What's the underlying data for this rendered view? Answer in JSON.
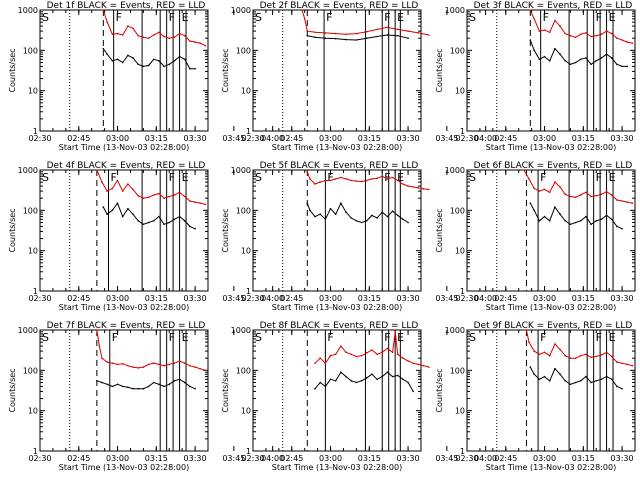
{
  "figure": {
    "common": {
      "xlabel": "Start Time (13-Nov-03 02:28:00)",
      "ylabel": "Counts/sec",
      "x_range_min": [
        150,
        215
      ],
      "y_range": [
        1,
        1000
      ],
      "x_tick_minutes": [
        150,
        165,
        180,
        195,
        210,
        225,
        240
      ],
      "x_tick_labels": [
        "02:30",
        "02:45",
        "03:00",
        "03:15",
        "03:30",
        "03:45",
        "04:00"
      ],
      "y_ticks": [
        1,
        10,
        100,
        1000
      ],
      "y_tick_labels": [
        "1",
        "10",
        "100",
        "1000"
      ],
      "marker_labels": {
        "start": "S",
        "flare": "F",
        "end": "E"
      },
      "colors": {
        "events": "#000000",
        "lld": "#dd0000",
        "axes": "#000000"
      }
    }
  },
  "chart_data": [
    {
      "type": "line",
      "title": "Det 1f BLACK = Events, RED = LLD",
      "xlabel": "Start Time (13-Nov-03 02:28:00)",
      "ylabel": "Counts/sec",
      "ylim": [
        1,
        1000
      ],
      "yscale": "log",
      "vlines": {
        "dotted": [
          161.5
        ],
        "dashed": [
          174.5
        ],
        "solid": [
          178.5,
          189.5,
          196.5,
          199,
          201.5,
          204,
          206.5
        ]
      },
      "series": [
        {
          "name": "Events",
          "x": [
            174.5,
            176,
            178,
            180,
            182,
            184,
            186,
            188,
            190,
            192,
            194,
            196,
            198,
            200,
            202,
            204,
            206,
            208,
            210
          ],
          "values": [
            110,
            80,
            55,
            60,
            50,
            75,
            65,
            45,
            40,
            42,
            60,
            55,
            40,
            45,
            55,
            70,
            60,
            35,
            35
          ]
        },
        {
          "name": "LLD",
          "x": [
            174.5,
            176,
            178,
            180,
            182,
            184,
            186,
            188,
            190,
            192,
            194,
            196,
            198,
            200,
            202,
            204,
            206,
            208,
            210,
            212,
            214
          ],
          "values": [
            1000,
            500,
            250,
            260,
            240,
            400,
            350,
            230,
            210,
            200,
            240,
            280,
            220,
            200,
            210,
            260,
            230,
            170,
            160,
            150,
            130
          ]
        }
      ]
    },
    {
      "type": "line",
      "title": "Det 2f BLACK = Events, RED = LLD",
      "xlabel": "Start Time (13-Nov-03 02:28:00)",
      "ylabel": "Counts/sec",
      "ylim": [
        1,
        1000
      ],
      "yscale": "log",
      "vlines": {
        "dotted": [
          161.5
        ],
        "dashed": [
          171
        ],
        "solid": [
          177.5,
          193.5,
          200,
          202.5,
          205,
          207
        ]
      },
      "series": [
        {
          "name": "Events",
          "x": [
            171,
            174,
            178,
            182,
            186,
            190,
            194,
            198,
            202,
            206,
            210
          ],
          "values": [
            230,
            210,
            200,
            195,
            185,
            180,
            200,
            220,
            240,
            230,
            200
          ]
        },
        {
          "name": "LLD",
          "x": [
            169,
            170,
            171,
            174,
            178,
            182,
            186,
            190,
            194,
            198,
            202,
            206,
            210,
            214,
            218
          ],
          "values": [
            1000,
            600,
            300,
            280,
            270,
            260,
            250,
            260,
            290,
            330,
            370,
            330,
            300,
            270,
            240
          ]
        }
      ]
    },
    {
      "type": "line",
      "title": "Det 3f BLACK = Events, RED = LLD",
      "xlabel": "Start Time (13-Nov-03 02:28:00)",
      "ylabel": "Counts/sec",
      "ylim": [
        1,
        1000
      ],
      "yscale": "log",
      "vlines": {
        "dotted": [
          161.5
        ],
        "dashed": [
          174.5
        ],
        "solid": [
          178.5,
          189.5,
          196.5,
          199,
          201.5,
          204,
          206.5
        ]
      },
      "series": [
        {
          "name": "Events",
          "x": [
            174.5,
            176,
            178,
            180,
            182,
            184,
            186,
            188,
            190,
            192,
            194,
            196,
            198,
            200,
            202,
            204,
            206,
            208,
            210,
            212
          ],
          "values": [
            180,
            100,
            60,
            70,
            55,
            110,
            80,
            55,
            45,
            50,
            60,
            65,
            45,
            55,
            65,
            80,
            65,
            45,
            40,
            40
          ]
        },
        {
          "name": "LLD",
          "x": [
            174.5,
            176,
            178,
            180,
            182,
            184,
            186,
            188,
            190,
            192,
            194,
            196,
            198,
            200,
            202,
            204,
            206,
            208,
            210,
            212,
            214
          ],
          "values": [
            1000,
            600,
            300,
            320,
            280,
            550,
            400,
            260,
            230,
            210,
            250,
            270,
            220,
            230,
            250,
            300,
            260,
            200,
            180,
            160,
            150
          ]
        }
      ]
    },
    {
      "type": "line",
      "title": "Det 4f BLACK = Events, RED = LLD",
      "xlabel": "Start Time (13-Nov-03 02:28:00)",
      "ylabel": "Counts/sec",
      "ylim": [
        1,
        1000
      ],
      "yscale": "log",
      "vlines": {
        "dotted": [
          161.5
        ],
        "dashed": [
          172
        ],
        "solid": [
          176.5,
          189.5,
          196.5,
          199,
          201.5,
          204,
          206.5
        ]
      },
      "series": [
        {
          "name": "Events",
          "x": [
            174.5,
            176,
            178,
            180,
            182,
            184,
            186,
            188,
            190,
            192,
            194,
            196,
            198,
            200,
            202,
            204,
            206,
            208,
            210
          ],
          "values": [
            120,
            80,
            100,
            150,
            70,
            110,
            80,
            55,
            45,
            50,
            55,
            70,
            45,
            50,
            60,
            70,
            55,
            40,
            35
          ]
        },
        {
          "name": "LLD",
          "x": [
            172,
            174,
            176,
            178,
            180,
            182,
            184,
            186,
            188,
            190,
            192,
            194,
            196,
            198,
            200,
            202,
            204,
            206,
            208,
            210,
            212,
            214
          ],
          "values": [
            1000,
            500,
            300,
            350,
            550,
            300,
            450,
            330,
            230,
            200,
            210,
            240,
            260,
            200,
            220,
            240,
            280,
            220,
            170,
            160,
            150,
            140
          ]
        }
      ]
    },
    {
      "type": "line",
      "title": "Det 5f BLACK = Events, RED = LLD",
      "xlabel": "Start Time (13-Nov-03 02:28:00)",
      "ylabel": "Counts/sec",
      "ylim": [
        1,
        1000
      ],
      "yscale": "log",
      "vlines": {
        "dotted": [
          161.5
        ],
        "dashed": [
          171
        ],
        "solid": [
          178,
          193.5,
          200,
          202.5,
          205,
          207
        ]
      },
      "series": [
        {
          "name": "Events",
          "x": [
            171,
            172,
            174,
            176,
            178,
            180,
            182,
            184,
            186,
            188,
            190,
            192,
            194,
            196,
            198,
            200,
            202,
            204,
            206,
            208,
            210
          ],
          "values": [
            150,
            100,
            70,
            80,
            60,
            110,
            80,
            150,
            90,
            65,
            55,
            50,
            55,
            75,
            65,
            90,
            70,
            95,
            75,
            60,
            50
          ]
        },
        {
          "name": "LLD",
          "x": [
            171,
            172,
            174,
            176,
            178,
            180,
            182,
            184,
            186,
            188,
            190,
            192,
            194,
            196,
            198,
            200,
            202,
            204,
            206,
            208,
            210,
            212,
            214,
            216,
            218
          ],
          "values": [
            900,
            600,
            450,
            500,
            550,
            550,
            600,
            650,
            600,
            550,
            530,
            520,
            550,
            600,
            620,
            700,
            600,
            650,
            550,
            450,
            400,
            380,
            360,
            340,
            330
          ]
        }
      ]
    },
    {
      "type": "line",
      "title": "Det 6f BLACK = Events, RED = LLD",
      "xlabel": "Start Time (13-Nov-03 02:28:00)",
      "ylabel": "Counts/sec",
      "ylim": [
        1,
        1000
      ],
      "yscale": "log",
      "vlines": {
        "dotted": [
          161.5
        ],
        "dashed": [
          173
        ],
        "solid": [
          177.5,
          189.5,
          196.5,
          199,
          201.5,
          204,
          206.5
        ]
      },
      "series": [
        {
          "name": "Events",
          "x": [
            174.5,
            176,
            178,
            180,
            182,
            184,
            186,
            188,
            190,
            192,
            194,
            196,
            198,
            200,
            202,
            204,
            206,
            208,
            210
          ],
          "values": [
            150,
            100,
            55,
            70,
            55,
            120,
            80,
            55,
            45,
            50,
            55,
            70,
            45,
            55,
            60,
            75,
            60,
            40,
            35
          ]
        },
        {
          "name": "LLD",
          "x": [
            172,
            174,
            176,
            178,
            180,
            182,
            184,
            186,
            188,
            190,
            192,
            194,
            196,
            198,
            200,
            202,
            204,
            206,
            208,
            210,
            212,
            214
          ],
          "values": [
            1000,
            600,
            350,
            300,
            330,
            280,
            500,
            380,
            250,
            220,
            210,
            240,
            280,
            220,
            230,
            250,
            290,
            240,
            180,
            170,
            160,
            150
          ]
        }
      ]
    },
    {
      "type": "line",
      "title": "Det 7f BLACK = Events, RED = LLD",
      "xlabel": "Start Time (13-Nov-03 02:28:00)",
      "ylabel": "Counts/sec",
      "ylim": [
        1,
        1000
      ],
      "yscale": "log",
      "vlines": {
        "dotted": [
          161.5
        ],
        "dashed": [
          172
        ],
        "solid": [
          177,
          196.5,
          199,
          201.5,
          204,
          206.5
        ]
      },
      "series": [
        {
          "name": "Events",
          "x": [
            172,
            174,
            176,
            178,
            180,
            182,
            184,
            186,
            188,
            190,
            192,
            194,
            196,
            198,
            200,
            202,
            204,
            206,
            208,
            210
          ],
          "values": [
            55,
            50,
            45,
            40,
            45,
            40,
            38,
            35,
            35,
            35,
            40,
            50,
            45,
            40,
            45,
            55,
            60,
            50,
            40,
            35
          ]
        },
        {
          "name": "LLD",
          "x": [
            172,
            173,
            174,
            176,
            178,
            180,
            182,
            184,
            186,
            188,
            190,
            192,
            194,
            196,
            198,
            200,
            202,
            204,
            206,
            208,
            210,
            212,
            214
          ],
          "values": [
            1000,
            400,
            200,
            160,
            150,
            140,
            145,
            130,
            120,
            115,
            120,
            140,
            150,
            140,
            130,
            140,
            150,
            170,
            150,
            130,
            120,
            110,
            100
          ]
        }
      ]
    },
    {
      "type": "line",
      "title": "Det 8f BLACK = Events, RED = LLD",
      "xlabel": "Start Time (13-Nov-03 02:28:00)",
      "ylabel": "Counts/sec",
      "ylim": [
        1,
        1000
      ],
      "yscale": "log",
      "vlines": {
        "dotted": [
          161.5
        ],
        "dashed": [
          171
        ],
        "solid": [
          178,
          193.5,
          200,
          202.5,
          205,
          207
        ]
      },
      "series": [
        {
          "name": "Events",
          "x": [
            174,
            176,
            178,
            180,
            182,
            184,
            186,
            188,
            190,
            192,
            194,
            196,
            198,
            200,
            202,
            204,
            206,
            208,
            210,
            212
          ],
          "values": [
            35,
            50,
            40,
            60,
            55,
            90,
            70,
            55,
            50,
            55,
            65,
            80,
            60,
            70,
            90,
            70,
            75,
            60,
            50,
            30
          ]
        },
        {
          "name": "LLD",
          "x": [
            174,
            176,
            178,
            180,
            182,
            184,
            186,
            188,
            190,
            192,
            194,
            196,
            198,
            200,
            202,
            204,
            205,
            206,
            208,
            210,
            212,
            214,
            216,
            218
          ],
          "values": [
            150,
            200,
            150,
            230,
            250,
            400,
            280,
            250,
            220,
            230,
            270,
            320,
            250,
            280,
            350,
            280,
            900,
            250,
            200,
            170,
            150,
            140,
            130,
            120
          ]
        }
      ]
    },
    {
      "type": "line",
      "title": "Det 9f BLACK = Events, RED = LLD",
      "xlabel": "Start Time (13-Nov-03 02:28:00)",
      "ylabel": "Counts/sec",
      "ylim": [
        1,
        1000
      ],
      "yscale": "log",
      "vlines": {
        "dotted": [
          161.5
        ],
        "dashed": [
          173
        ],
        "solid": [
          177.5,
          189.5,
          196.5,
          199,
          201.5,
          204,
          206.5
        ]
      },
      "series": [
        {
          "name": "Events",
          "x": [
            174.5,
            176,
            178,
            180,
            182,
            184,
            186,
            188,
            190,
            192,
            194,
            196,
            198,
            200,
            202,
            204,
            206,
            208,
            210
          ],
          "values": [
            120,
            80,
            60,
            70,
            55,
            110,
            80,
            55,
            45,
            50,
            55,
            70,
            50,
            55,
            60,
            70,
            60,
            40,
            35
          ]
        },
        {
          "name": "LLD",
          "x": [
            173,
            174,
            176,
            178,
            180,
            182,
            184,
            186,
            188,
            190,
            192,
            194,
            196,
            198,
            200,
            202,
            204,
            206,
            208,
            210,
            212,
            214
          ],
          "values": [
            1000,
            500,
            300,
            250,
            280,
            230,
            450,
            330,
            230,
            200,
            200,
            230,
            250,
            210,
            220,
            240,
            280,
            220,
            160,
            150,
            140,
            130
          ]
        }
      ]
    }
  ]
}
